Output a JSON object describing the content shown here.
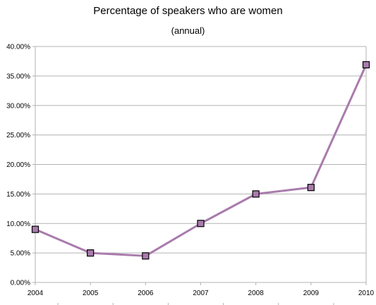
{
  "chart_data": {
    "type": "line",
    "title": "Percentage of speakers who are women",
    "subtitle": "(annual)",
    "xlabel": "",
    "ylabel": "",
    "categories": [
      "2004",
      "2005",
      "2006",
      "2007",
      "2008",
      "2009",
      "2010"
    ],
    "series": [
      {
        "values": [
          9.0,
          5.0,
          4.5,
          10.0,
          15.0,
          16.1,
          36.9
        ]
      }
    ],
    "ylim": [
      0,
      40
    ],
    "yticks": [
      "0.00%",
      "5.00%",
      "10.00%",
      "15.00%",
      "20.00%",
      "25.00%",
      "30.00%",
      "35.00%",
      "40.00%"
    ],
    "grid": true,
    "legend": "none",
    "colors": {
      "line": "#a97bad",
      "marker_fill": "#a97bad",
      "marker_stroke": "#000000",
      "grid": "#b3b3b3",
      "axis": "#b3b3b3"
    }
  }
}
